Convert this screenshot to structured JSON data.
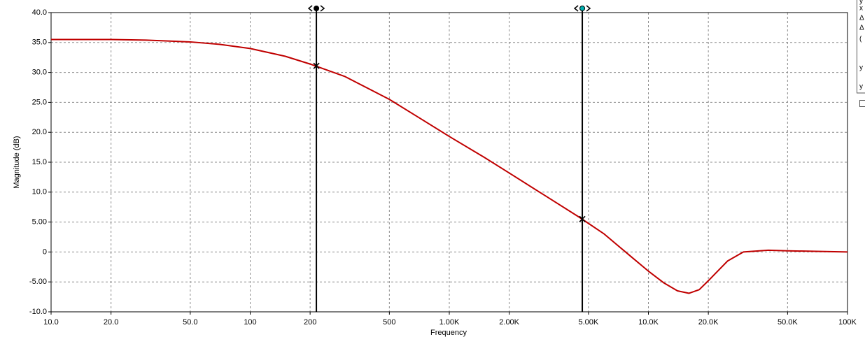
{
  "chart_data": {
    "type": "line",
    "xlabel": "Frequency",
    "ylabel": "Magnitude (dB)",
    "xscale": "log",
    "xlim": [
      10,
      100000
    ],
    "ylim": [
      -10,
      40
    ],
    "grid": true,
    "color": "#c00000",
    "xticks": [
      {
        "value": 10,
        "label": "10.0"
      },
      {
        "value": 20,
        "label": "20.0"
      },
      {
        "value": 50,
        "label": "50.0"
      },
      100,
      200,
      500,
      {
        "value": 1000,
        "label": "1.00K"
      },
      {
        "value": 2000,
        "label": "2.00K"
      },
      {
        "value": 5000,
        "label": "5.00K"
      },
      {
        "value": 10000,
        "label": "10.0K"
      },
      {
        "value": 20000,
        "label": "20.0K"
      },
      {
        "value": 50000,
        "label": "50.0K"
      },
      {
        "value": 100000,
        "label": "100K"
      }
    ],
    "yticks": [
      {
        "value": 40,
        "label": "40.0"
      },
      {
        "value": 35,
        "label": "35.0"
      },
      {
        "value": 30,
        "label": "30.0"
      },
      {
        "value": 25,
        "label": "25.0"
      },
      {
        "value": 20,
        "label": "20.0"
      },
      {
        "value": 15,
        "label": "15.0"
      },
      {
        "value": 10,
        "label": "10.0"
      },
      {
        "value": 5,
        "label": "5.00"
      },
      0,
      {
        "value": -5,
        "label": "-5.00"
      },
      {
        "value": -10,
        "label": "-10.0"
      }
    ],
    "x": [
      10,
      20,
      30,
      50,
      70,
      100,
      150,
      200,
      300,
      500,
      700,
      1000,
      1500,
      2000,
      3000,
      4500,
      6000,
      8000,
      10000,
      12000,
      14000,
      16000,
      18000,
      20000,
      25000,
      30000,
      40000,
      50000,
      70000,
      100000
    ],
    "values": [
      35.5,
      35.5,
      35.4,
      35.1,
      34.7,
      34.0,
      32.7,
      31.4,
      29.3,
      25.5,
      22.5,
      19.3,
      15.8,
      13.2,
      9.5,
      5.8,
      3.0,
      -0.5,
      -3.2,
      -5.2,
      -6.5,
      -6.9,
      -6.3,
      -4.8,
      -1.5,
      0.0,
      0.3,
      0.2,
      0.1,
      0.0
    ],
    "cursors": [
      {
        "x": 215,
        "y": 31.1,
        "color": "#000000"
      },
      {
        "x": 4656,
        "y": 5.5,
        "color": "#00b0b0"
      }
    ]
  },
  "side_panel": [
    "y",
    "x",
    "Δ",
    "Δ",
    "(",
    "y",
    "y"
  ]
}
